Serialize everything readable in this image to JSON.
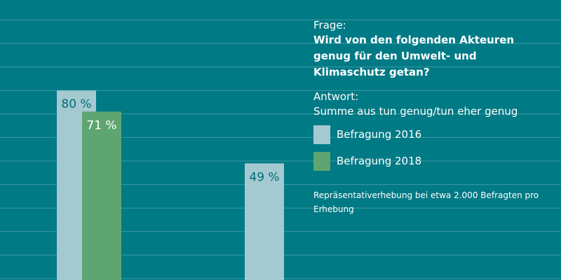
{
  "chart_data": {
    "type": "bar",
    "series": [
      {
        "name": "Befragung 2016",
        "color": "#a4c9d0",
        "label_color": "#006e78",
        "values": [
          80,
          49
        ]
      },
      {
        "name": "Befragung 2018",
        "color": "#5fa571",
        "label_color": "#ffffff",
        "values": [
          71,
          null
        ]
      }
    ],
    "data_labels": [
      [
        "80 %",
        "49 %"
      ],
      [
        "71 %",
        ""
      ]
    ],
    "ylim": [
      0,
      100
    ],
    "grid": true,
    "legend_placement": "right",
    "question_label": "Frage:",
    "question_text": "Wird von den folgenden Akteuren genug für den Umwelt- und Klimaschutz getan?",
    "answer_label": "Antwort:",
    "answer_text": "Summe aus tun genug/tun eher genug",
    "note": "Repräsentativerhebung bei etwa 2.000 Befragten pro Erhebung"
  },
  "colors": {
    "background": "#007a85",
    "gridline": "#3f9aa3"
  }
}
